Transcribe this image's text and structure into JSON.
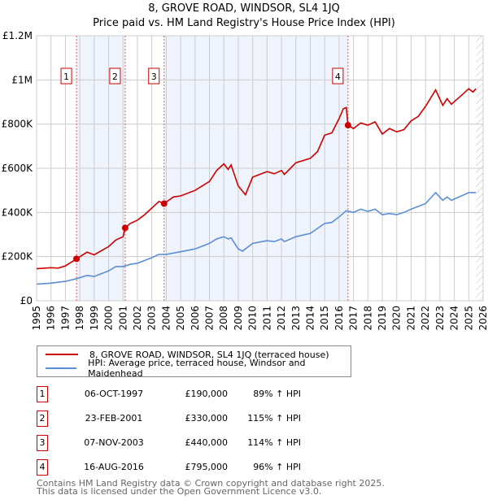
{
  "chart_data": {
    "type": "line",
    "title": "8, GROVE ROAD, WINDSOR, SL4 1JQ",
    "subtitle": "Price paid vs. HM Land Registry's House Price Index (HPI)",
    "xlim": [
      1995,
      2026
    ],
    "ylim": [
      0,
      1200000
    ],
    "y_ticks": [
      {
        "v": 0,
        "label": "£0"
      },
      {
        "v": 200000,
        "label": "£200K"
      },
      {
        "v": 400000,
        "label": "£400K"
      },
      {
        "v": 600000,
        "label": "£600K"
      },
      {
        "v": 800000,
        "label": "£800K"
      },
      {
        "v": 1000000,
        "label": "£1M"
      },
      {
        "v": 1200000,
        "label": "£1.2M"
      }
    ],
    "x_ticks": [
      "1995",
      "1996",
      "1997",
      "1998",
      "1999",
      "2000",
      "2001",
      "2002",
      "2003",
      "2004",
      "2005",
      "2006",
      "2007",
      "2008",
      "2009",
      "2010",
      "2011",
      "2012",
      "2013",
      "2014",
      "2015",
      "2016",
      "2017",
      "2018",
      "2019",
      "2020",
      "2021",
      "2022",
      "2023",
      "2024",
      "2025",
      "2026"
    ],
    "grid": true,
    "forecast_hatch_from": 2025.5,
    "shaded_spans": [
      [
        1997.77,
        2001.15
      ],
      [
        2003.85,
        2016.62
      ]
    ],
    "series": [
      {
        "name": "8, GROVE ROAD, WINDSOR, SL4 1JQ (terraced house)",
        "color": "#cc0000",
        "x": [
          1995,
          1996,
          1996.5,
          1997,
          1997.77,
          1998.5,
          1999,
          2000,
          2000.5,
          2001,
          2001.15,
          2001.5,
          2002,
          2002.5,
          2003,
          2003.5,
          2003.85,
          2004.5,
          2005,
          2006,
          2007,
          2007.5,
          2008,
          2008.3,
          2008.5,
          2009,
          2009.5,
          2010,
          2011,
          2011.5,
          2012,
          2012.2,
          2013,
          2014,
          2014.5,
          2015,
          2015.5,
          2016,
          2016.3,
          2016.5,
          2016.62,
          2017,
          2017.5,
          2018,
          2018.5,
          2019,
          2019.5,
          2020,
          2020.5,
          2021,
          2021.5,
          2022,
          2022.7,
          2023.2,
          2023.5,
          2023.8,
          2024.5,
          2025,
          2025.3,
          2025.5
        ],
        "y": [
          145000,
          150000,
          148000,
          158000,
          190000,
          220000,
          208000,
          245000,
          275000,
          290000,
          330000,
          350000,
          365000,
          390000,
          420000,
          450000,
          440000,
          470000,
          475000,
          500000,
          540000,
          590000,
          620000,
          595000,
          615000,
          520000,
          480000,
          560000,
          585000,
          575000,
          590000,
          572000,
          625000,
          645000,
          675000,
          750000,
          760000,
          825000,
          870000,
          875000,
          795000,
          780000,
          805000,
          795000,
          810000,
          755000,
          780000,
          765000,
          775000,
          815000,
          835000,
          880000,
          955000,
          885000,
          915000,
          890000,
          930000,
          960000,
          945000,
          960000
        ]
      },
      {
        "name": "HPI: Average price, terraced house, Windsor and Maidenhead",
        "color": "#5b8fd4",
        "x": [
          1995,
          1996,
          1997,
          1997.77,
          1998.5,
          1999,
          2000,
          2000.5,
          2001,
          2001.5,
          2002,
          2003,
          2003.5,
          2004,
          2005,
          2006,
          2007,
          2007.5,
          2008,
          2008.3,
          2008.5,
          2009,
          2009.3,
          2010,
          2011,
          2011.5,
          2012,
          2012.2,
          2013,
          2014,
          2015,
          2015.5,
          2016,
          2016.5,
          2017,
          2017.5,
          2018,
          2018.5,
          2019,
          2019.5,
          2020,
          2020.5,
          2021,
          2022,
          2022.7,
          2023.2,
          2023.5,
          2023.8,
          2024.5,
          2025,
          2025.5
        ],
        "y": [
          75000,
          80000,
          88000,
          100000,
          115000,
          110000,
          135000,
          155000,
          155000,
          165000,
          170000,
          195000,
          210000,
          210000,
          222000,
          235000,
          260000,
          280000,
          290000,
          280000,
          285000,
          235000,
          225000,
          260000,
          272000,
          268000,
          280000,
          268000,
          290000,
          305000,
          350000,
          355000,
          380000,
          408000,
          400000,
          415000,
          405000,
          415000,
          390000,
          395000,
          390000,
          400000,
          415000,
          440000,
          490000,
          455000,
          470000,
          455000,
          475000,
          490000,
          490000
        ]
      }
    ],
    "sales": [
      {
        "n": "1",
        "x": 1997.77,
        "price": 190000,
        "date": "06-OCT-1997",
        "price_label": "£190,000",
        "hpi": "89% ↑ HPI"
      },
      {
        "n": "2",
        "x": 2001.15,
        "price": 330000,
        "date": "23-FEB-2001",
        "price_label": "£330,000",
        "hpi": "115% ↑ HPI"
      },
      {
        "n": "3",
        "x": 2003.85,
        "price": 440000,
        "date": "07-NOV-2003",
        "price_label": "£440,000",
        "hpi": "114% ↑ HPI"
      },
      {
        "n": "4",
        "x": 2016.62,
        "price": 795000,
        "date": "16-AUG-2016",
        "price_label": "£795,000",
        "hpi": "96% ↑ HPI"
      }
    ]
  },
  "legend": {
    "red": "8, GROVE ROAD, WINDSOR, SL4 1JQ (terraced house)",
    "blue": "HPI: Average price, terraced house, Windsor and Maidenhead"
  },
  "footer": {
    "line1": "Contains HM Land Registry data © Crown copyright and database right 2025.",
    "line2": "This data is licensed under the Open Government Licence v3.0."
  }
}
